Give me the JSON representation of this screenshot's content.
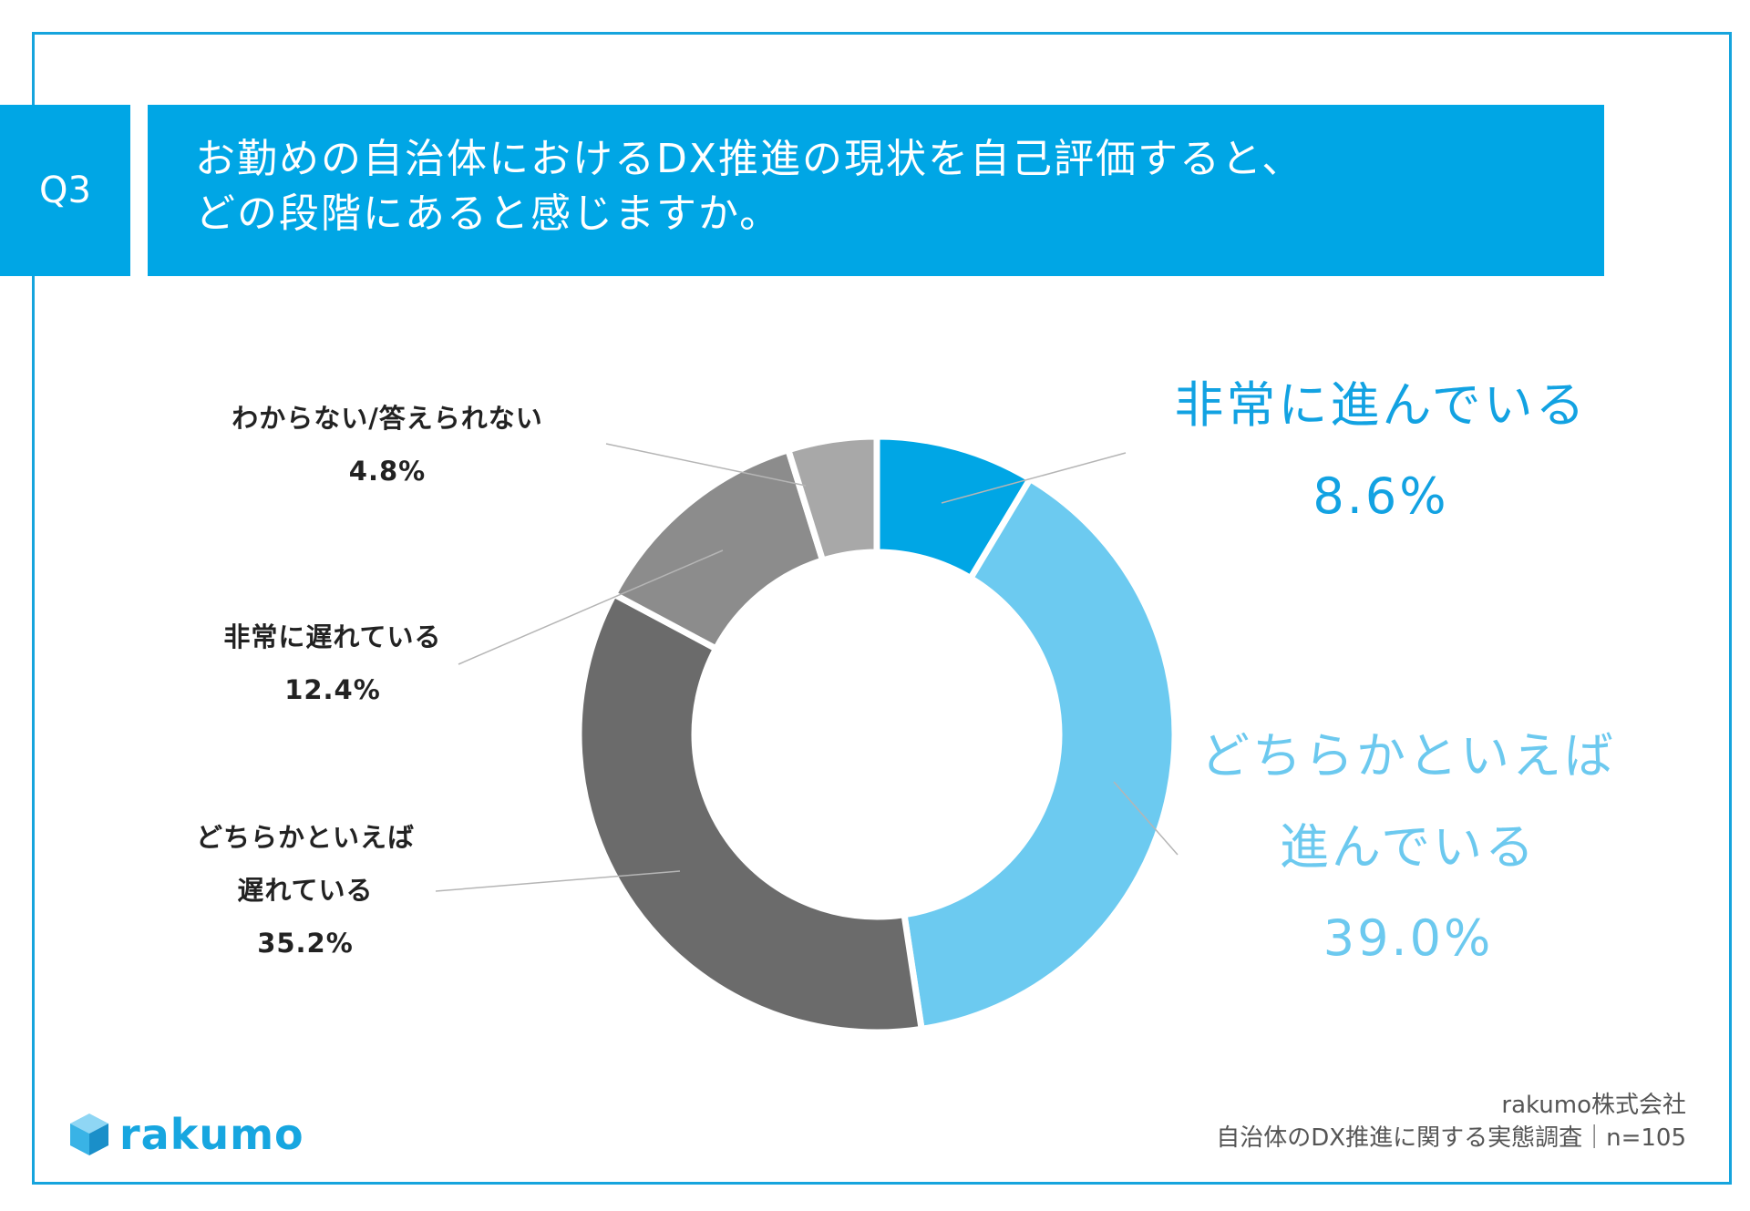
{
  "header": {
    "badge": "Q3",
    "question_line1": "お勤めの自治体におけるDX推進の現状を自己評価すると、",
    "question_line2": "どの段階にあると感じますか。"
  },
  "chart_data": {
    "type": "pie",
    "donut": true,
    "categories": [
      "非常に進んでいる",
      "どちらかといえば進んでいる",
      "どちらかといえば遅れている",
      "非常に遅れている",
      "わからない/答えられない"
    ],
    "values": [
      8.6,
      39.0,
      35.2,
      12.4,
      4.8
    ],
    "colors": [
      "#00a6e5",
      "#6ccaf0",
      "#6b6b6b",
      "#8c8c8c",
      "#a8a8a8"
    ],
    "unit": "%"
  },
  "labels": {
    "very_advanced": {
      "name": "非常に進んでいる",
      "value": "8.6%"
    },
    "somewhat_advanced": {
      "line1": "どちらかといえば",
      "line2": "進んでいる",
      "value": "39.0%"
    },
    "somewhat_behind": {
      "line1": "どちらかといえば",
      "line2": "遅れている",
      "value": "35.2%"
    },
    "very_behind": {
      "name": "非常に遅れている",
      "value": "12.4%"
    },
    "unknown": {
      "name": "わからない/答えられない",
      "value": "4.8%"
    }
  },
  "footer": {
    "company": "rakumo株式会社",
    "survey": "自治体のDX推進に関する実態調査｜n=105",
    "logo_text": "rakumo"
  }
}
